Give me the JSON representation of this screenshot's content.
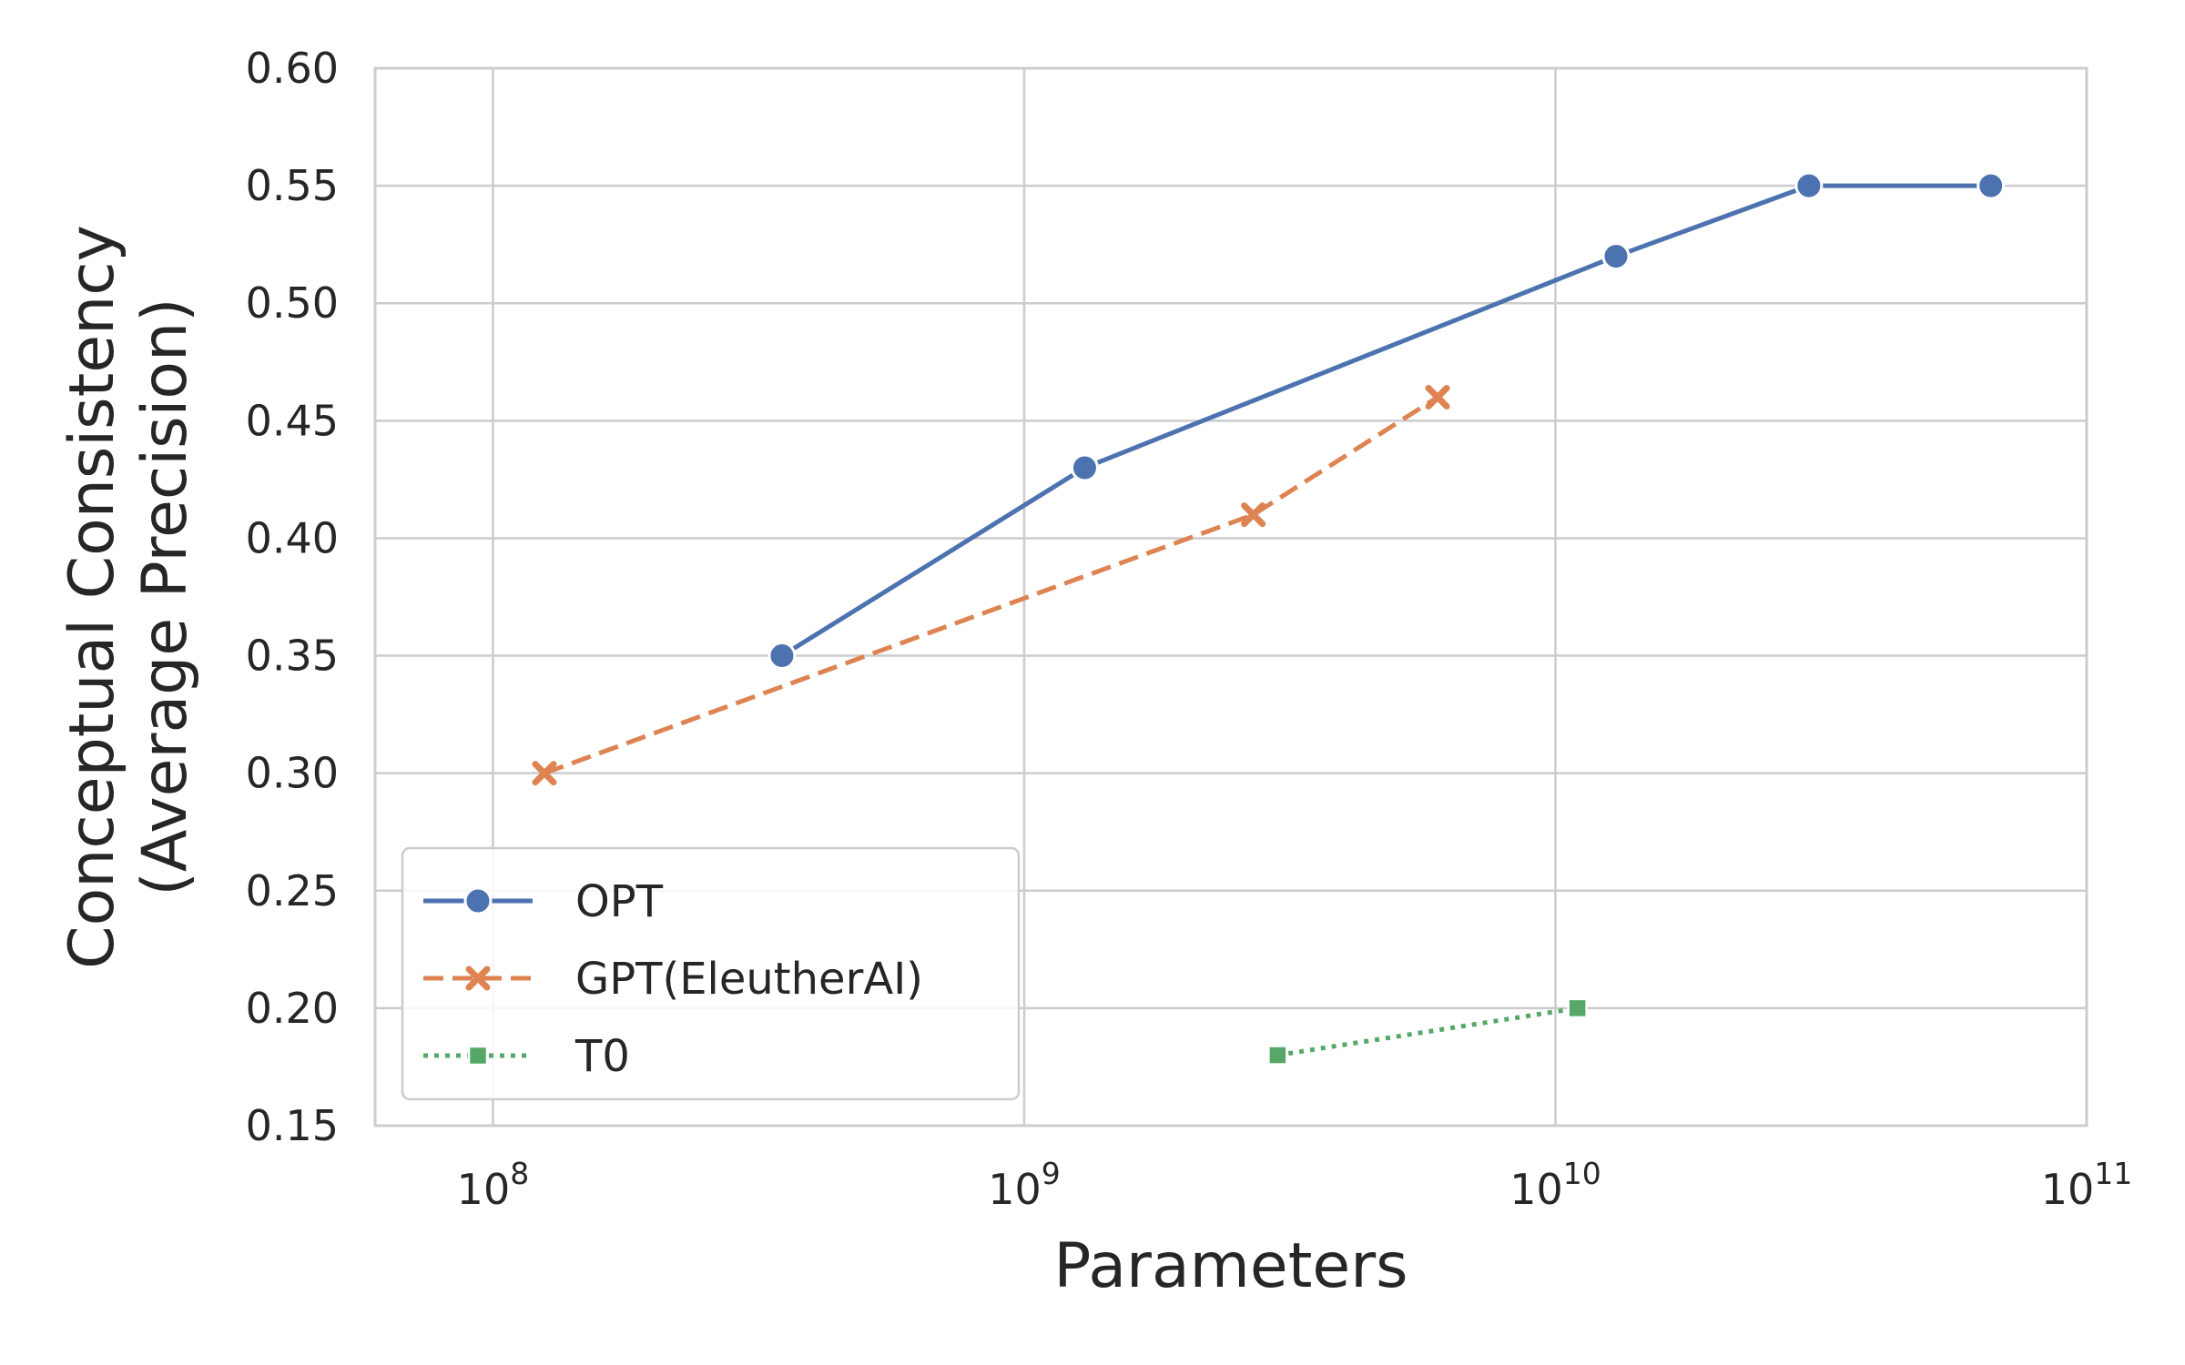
{
  "chart_data": {
    "type": "line",
    "xlabel": "Parameters",
    "ylabel_lines": [
      "Conceptual Consistency",
      "(Average Precision)"
    ],
    "x_scale": "log",
    "xlim": [
      60000000,
      100000000000
    ],
    "ylim": [
      0.15,
      0.6
    ],
    "x_ticks": [
      {
        "value": 100000000,
        "base": "10",
        "exp": "8"
      },
      {
        "value": 1000000000,
        "base": "10",
        "exp": "9"
      },
      {
        "value": 10000000000,
        "base": "10",
        "exp": "10"
      },
      {
        "value": 100000000000,
        "base": "10",
        "exp": "11"
      }
    ],
    "y_ticks": [
      {
        "value": 0.15,
        "label": "0.15"
      },
      {
        "value": 0.2,
        "label": "0.20"
      },
      {
        "value": 0.25,
        "label": "0.25"
      },
      {
        "value": 0.3,
        "label": "0.30"
      },
      {
        "value": 0.35,
        "label": "0.35"
      },
      {
        "value": 0.4,
        "label": "0.40"
      },
      {
        "value": 0.45,
        "label": "0.45"
      },
      {
        "value": 0.5,
        "label": "0.50"
      },
      {
        "value": 0.55,
        "label": "0.55"
      },
      {
        "value": 0.6,
        "label": "0.60"
      }
    ],
    "grid": true,
    "legend_position": "lower-left",
    "series": [
      {
        "name": "OPT",
        "color": "#4c72b0",
        "dash": "solid",
        "marker": "circle",
        "points": [
          {
            "x": 350000000,
            "y": 0.35
          },
          {
            "x": 1300000000,
            "y": 0.43
          },
          {
            "x": 13000000000,
            "y": 0.52
          },
          {
            "x": 30000000000,
            "y": 0.55
          },
          {
            "x": 66000000000,
            "y": 0.55
          }
        ]
      },
      {
        "name": "GPT(EleutherAI)",
        "color": "#dd8452",
        "dash": "dashed",
        "marker": "x",
        "points": [
          {
            "x": 125000000,
            "y": 0.3
          },
          {
            "x": 2700000000,
            "y": 0.41
          },
          {
            "x": 6000000000,
            "y": 0.46
          }
        ]
      },
      {
        "name": "T0",
        "color": "#55a868",
        "dash": "dotted",
        "marker": "square",
        "points": [
          {
            "x": 3000000000,
            "y": 0.18
          },
          {
            "x": 11000000000,
            "y": 0.2
          }
        ]
      }
    ]
  }
}
